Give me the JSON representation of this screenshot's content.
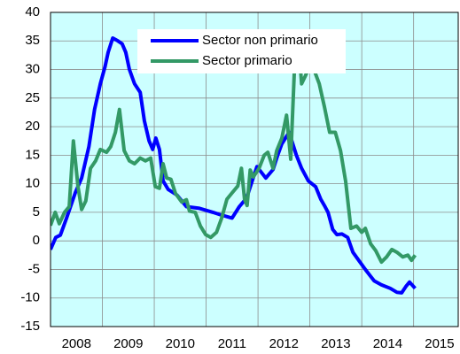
{
  "chart_data": {
    "type": "line",
    "xlim": [
      2008,
      2015.86
    ],
    "xticks": [
      {
        "value": 2008.5,
        "label": "2008"
      },
      {
        "value": 2009.5,
        "label": "2009"
      },
      {
        "value": 2010.5,
        "label": "2010"
      },
      {
        "value": 2011.5,
        "label": "2011"
      },
      {
        "value": 2012.5,
        "label": "2012"
      },
      {
        "value": 2013.5,
        "label": "2013"
      },
      {
        "value": 2014.5,
        "label": "2014"
      },
      {
        "value": 2015.5,
        "label": "2015"
      }
    ],
    "ylim": [
      -15,
      40
    ],
    "yticks": [
      -15,
      -10,
      -5,
      0,
      5,
      10,
      15,
      20,
      25,
      30,
      35,
      40
    ],
    "grid": true,
    "legend": "top",
    "series": [
      {
        "name": "Sector non primario",
        "color": "#0000ff",
        "x": [
          2008.0,
          2008.1,
          2008.19,
          2008.31,
          2008.48,
          2008.6,
          2008.74,
          2008.85,
          2008.96,
          2009.05,
          2009.11,
          2009.2,
          2009.3,
          2009.38,
          2009.45,
          2009.52,
          2009.62,
          2009.73,
          2009.81,
          2009.9,
          2009.97,
          2010.03,
          2010.1,
          2010.17,
          2010.27,
          2010.44,
          2010.62,
          2010.87,
          2011.13,
          2011.3,
          2011.5,
          2011.64,
          2011.78,
          2011.98,
          2012.15,
          2012.29,
          2012.38,
          2012.46,
          2012.53,
          2012.6,
          2012.67,
          2012.74,
          2012.84,
          2012.97,
          2013.11,
          2013.21,
          2013.28,
          2013.35,
          2013.44,
          2013.52,
          2013.62,
          2013.73,
          2013.83,
          2013.95,
          2014.07,
          2014.17,
          2014.24,
          2014.38,
          2014.55,
          2014.68,
          2014.77,
          2014.85,
          2014.92,
          2015.03
        ],
        "values": [
          -1.5,
          0.6,
          1,
          4,
          8.5,
          11,
          16.5,
          23,
          27.5,
          30.5,
          33,
          35.5,
          35,
          34.5,
          33,
          30,
          27.5,
          26,
          21,
          17.5,
          16,
          18,
          16,
          10.5,
          9,
          8,
          6,
          5.7,
          5,
          4.5,
          4,
          6,
          7.5,
          13,
          11,
          12.5,
          15,
          17,
          18,
          19,
          17,
          15,
          12.7,
          10.5,
          9.5,
          7.3,
          6.2,
          5,
          2,
          1.1,
          1.2,
          0.6,
          -2,
          -3.5,
          -5,
          -6.2,
          -7,
          -7.7,
          -8.3,
          -9,
          -9.1,
          -8,
          -7.2,
          -8.3
        ]
      },
      {
        "name": "Sector primario",
        "color": "#339966",
        "x": [
          2008.0,
          2008.09,
          2008.17,
          2008.27,
          2008.36,
          2008.44,
          2008.53,
          2008.6,
          2008.68,
          2008.77,
          2008.87,
          2008.96,
          2009.08,
          2009.16,
          2009.25,
          2009.33,
          2009.42,
          2009.52,
          2009.62,
          2009.73,
          2009.83,
          2009.93,
          2010.02,
          2010.1,
          2010.17,
          2010.24,
          2010.32,
          2010.41,
          2010.53,
          2010.62,
          2010.68,
          2010.79,
          2010.89,
          2010.99,
          2011.09,
          2011.2,
          2011.3,
          2011.4,
          2011.5,
          2011.61,
          2011.68,
          2011.74,
          2011.79,
          2011.85,
          2011.91,
          2012.02,
          2012.12,
          2012.19,
          2012.29,
          2012.36,
          2012.46,
          2012.55,
          2012.63,
          2012.7,
          2012.77,
          2012.84,
          2012.92,
          2013.01,
          2013.09,
          2013.18,
          2013.28,
          2013.38,
          2013.49,
          2013.59,
          2013.69,
          2013.79,
          2013.9,
          2014.0,
          2014.07,
          2014.17,
          2014.27,
          2014.38,
          2014.48,
          2014.58,
          2014.68,
          2014.79,
          2014.89,
          2014.96,
          2015.03
        ],
        "values": [
          2.7,
          5,
          3,
          5,
          6,
          17.5,
          9.5,
          5.5,
          7,
          12.7,
          14,
          16,
          15.5,
          16.5,
          19,
          23,
          15.8,
          14,
          13.5,
          14.5,
          14,
          14.5,
          9.5,
          9.2,
          13.5,
          11,
          10.8,
          8.3,
          6.8,
          7.2,
          5.2,
          5,
          2.6,
          1.1,
          0.6,
          1.5,
          4,
          7.3,
          8.4,
          9.6,
          12.7,
          7.3,
          6.2,
          12.4,
          11.2,
          12.7,
          15,
          15.5,
          12.7,
          15.8,
          18,
          22,
          14.3,
          29.7,
          36,
          27.5,
          29,
          31,
          29.7,
          27.5,
          23.5,
          19,
          19,
          15.8,
          10.4,
          2.2,
          2.6,
          1.5,
          2.2,
          -0.5,
          -1.7,
          -3.7,
          -2.8,
          -1.5,
          -2,
          -2.8,
          -2.5,
          -3.4,
          -2.5
        ]
      }
    ]
  }
}
